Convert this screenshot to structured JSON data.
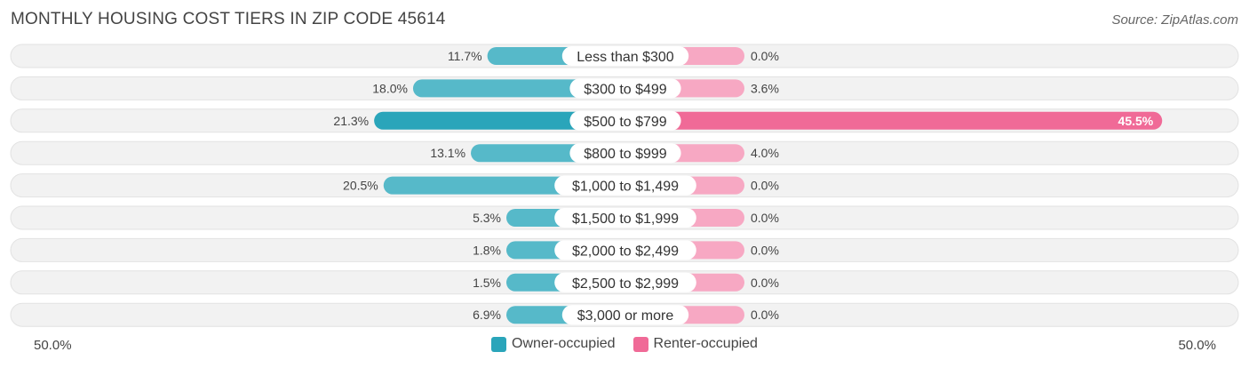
{
  "header": {
    "title": "MONTHLY HOUSING COST TIERS IN ZIP CODE 45614",
    "source": "Source: ZipAtlas.com"
  },
  "colors": {
    "owner": "#56b9c9",
    "owner_strong": "#2aa5ba",
    "renter": "#f7a8c3",
    "renter_strong": "#f06a97",
    "track": "#f2f2f2"
  },
  "chart_data": {
    "type": "bar",
    "orientation": "horizontal-diverging",
    "categories": [
      "Less than $300",
      "$300 to $499",
      "$500 to $799",
      "$800 to $999",
      "$1,000 to $1,499",
      "$1,500 to $1,999",
      "$2,000 to $2,499",
      "$2,500 to $2,999",
      "$3,000 or more"
    ],
    "series": [
      {
        "name": "Owner-occupied",
        "values": [
          11.7,
          18.0,
          21.3,
          13.1,
          20.5,
          5.3,
          1.8,
          1.5,
          6.9
        ],
        "labels": [
          "11.7%",
          "18.0%",
          "21.3%",
          "13.1%",
          "20.5%",
          "5.3%",
          "1.8%",
          "1.5%",
          "6.9%"
        ]
      },
      {
        "name": "Renter-occupied",
        "values": [
          0.0,
          3.6,
          45.5,
          4.0,
          0.0,
          0.0,
          0.0,
          0.0,
          0.0
        ],
        "labels": [
          "0.0%",
          "3.6%",
          "45.5%",
          "4.0%",
          "0.0%",
          "0.0%",
          "0.0%",
          "0.0%",
          "0.0%"
        ]
      }
    ],
    "xlim": [
      -50,
      50
    ],
    "axis_labels": {
      "left": "50.0%",
      "right": "50.0%"
    },
    "legend": {
      "placement": "bottom-center"
    }
  }
}
